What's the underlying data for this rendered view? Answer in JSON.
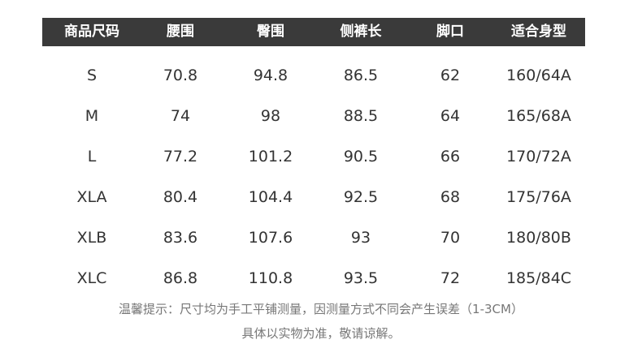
{
  "table": {
    "headers": [
      "商品尺码",
      "腰围",
      "臀围",
      "侧裤长",
      "脚口",
      "适合身型"
    ],
    "rows": [
      [
        "S",
        70.8,
        94.8,
        86.5,
        62,
        "160/64A"
      ],
      [
        "M",
        74,
        98,
        88.5,
        64,
        "165/68A"
      ],
      [
        "L",
        77.2,
        101.2,
        90.5,
        66,
        "170/72A"
      ],
      [
        "XLA",
        80.4,
        104.4,
        92.5,
        68,
        "175/76A"
      ],
      [
        "XLB",
        83.6,
        107.6,
        93,
        70,
        "180/80B"
      ],
      [
        "XLC",
        86.8,
        110.8,
        93.5,
        72,
        "185/84C"
      ]
    ]
  },
  "notes": [
    "温馨提示：尺寸均为手工平铺测量，因测量方式不同会产生误差（1-3CM）",
    "具体以实物为准，敬请谅解。"
  ]
}
